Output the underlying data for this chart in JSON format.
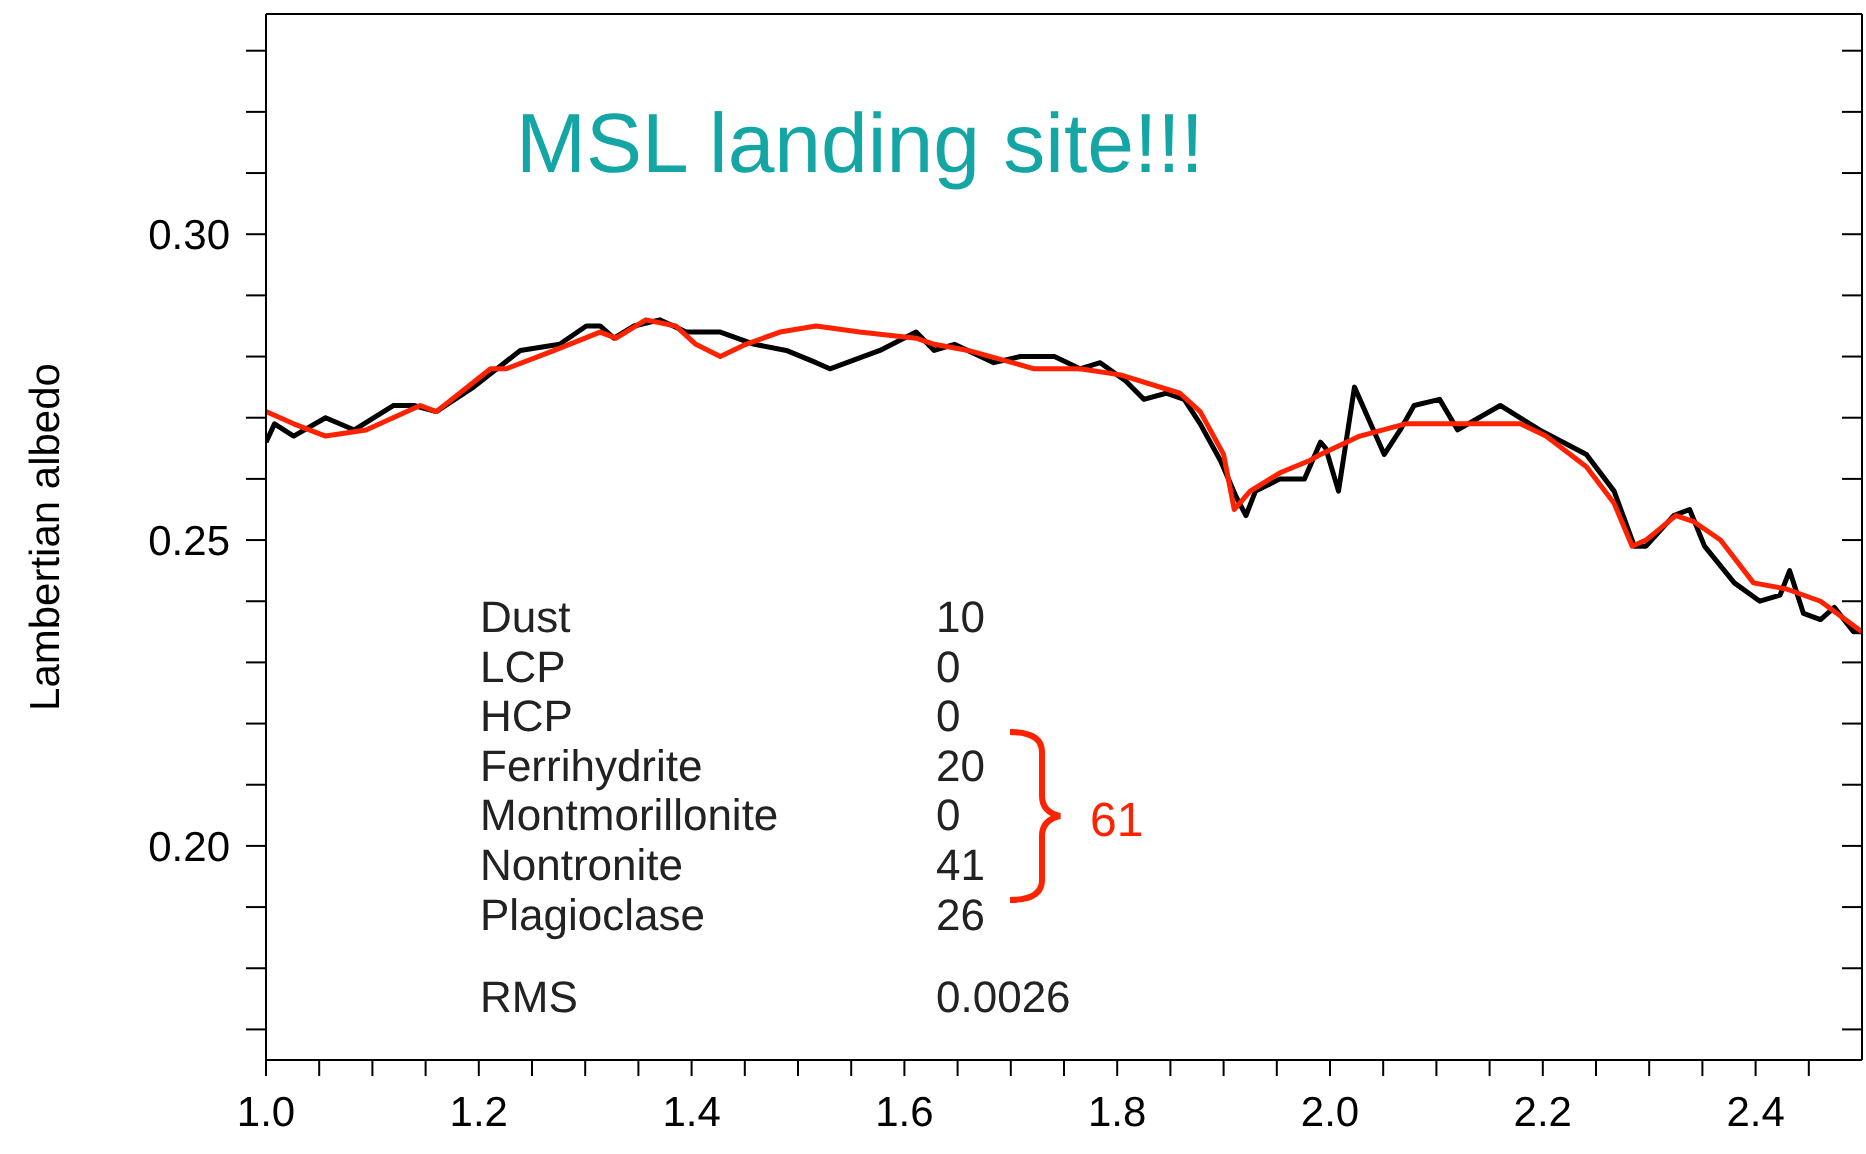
{
  "chart_data": {
    "type": "line",
    "title": "MSL landing site!!!",
    "ylabel": "Lambertian albedo",
    "xlim": [
      1.0,
      2.5
    ],
    "xticks": [
      {
        "value": 1.0,
        "label": "1.0"
      },
      {
        "value": 1.05,
        "label": null
      },
      {
        "value": 1.1,
        "label": null
      },
      {
        "value": 1.15,
        "label": null
      },
      1.2,
      {
        "value": 1.25,
        "label": null
      },
      {
        "value": 1.3,
        "label": null
      },
      {
        "value": 1.35,
        "label": null
      },
      1.4,
      {
        "value": 1.45,
        "label": null
      },
      {
        "value": 1.5,
        "label": null
      },
      {
        "value": 1.55,
        "label": null
      },
      1.6,
      {
        "value": 1.65,
        "label": null
      },
      {
        "value": 1.7,
        "label": null
      },
      {
        "value": 1.75,
        "label": null
      },
      1.8,
      {
        "value": 1.85,
        "label": null
      },
      {
        "value": 1.9,
        "label": null
      },
      {
        "value": 1.95,
        "label": null
      },
      {
        "value": 2.0,
        "label": "2.0"
      },
      {
        "value": 2.05,
        "label": null
      },
      {
        "value": 2.1,
        "label": null
      },
      {
        "value": 2.15,
        "label": null
      },
      2.2,
      {
        "value": 2.25,
        "label": null
      },
      {
        "value": 2.3,
        "label": null
      },
      {
        "value": 2.35,
        "label": null
      },
      2.4,
      {
        "value": 2.45,
        "label": null
      }
    ],
    "ylim": [
      0.165,
      0.336
    ],
    "yticks": [
      {
        "value": 0.17,
        "label": null
      },
      {
        "value": 0.18,
        "label": null
      },
      {
        "value": 0.19,
        "label": null
      },
      {
        "value": 0.2,
        "label": "0.20"
      },
      {
        "value": 0.21,
        "label": null
      },
      {
        "value": 0.22,
        "label": null
      },
      {
        "value": 0.23,
        "label": null
      },
      {
        "value": 0.24,
        "label": null
      },
      {
        "value": 0.25,
        "label": "0.25"
      },
      {
        "value": 0.26,
        "label": null
      },
      {
        "value": 0.27,
        "label": null
      },
      {
        "value": 0.28,
        "label": null
      },
      {
        "value": 0.29,
        "label": null
      },
      {
        "value": 0.3,
        "label": "0.30"
      },
      {
        "value": 0.31,
        "label": null
      },
      {
        "value": 0.32,
        "label": null
      },
      {
        "value": 0.33,
        "label": null
      }
    ],
    "marker": "none",
    "line_style": "solid",
    "series": [
      {
        "color": "#000000",
        "x": [
          1.0,
          1.008,
          1.026,
          1.056,
          1.083,
          1.12,
          1.139,
          1.16,
          1.195,
          1.239,
          1.276,
          1.301,
          1.314,
          1.327,
          1.346,
          1.37,
          1.395,
          1.427,
          1.459,
          1.489,
          1.517,
          1.53,
          1.577,
          1.611,
          1.628,
          1.647,
          1.684,
          1.709,
          1.741,
          1.765,
          1.784,
          1.808,
          1.825,
          1.846,
          1.863,
          1.878,
          1.897,
          1.912,
          1.921,
          1.93,
          1.953,
          1.976,
          1.991,
          1.996,
          2.008,
          2.023,
          2.051,
          2.066,
          2.079,
          2.103,
          2.12,
          2.16,
          2.197,
          2.241,
          2.267,
          2.286,
          2.297,
          2.323,
          2.338,
          2.352,
          2.38,
          2.404,
          2.423,
          2.432,
          2.445,
          2.461,
          2.474,
          2.492,
          2.5
        ],
        "values": [
          0.266,
          0.269,
          0.267,
          0.27,
          0.268,
          0.272,
          0.272,
          0.271,
          0.275,
          0.281,
          0.282,
          0.285,
          0.285,
          0.283,
          0.285,
          0.286,
          0.284,
          0.284,
          0.282,
          0.281,
          0.279,
          0.278,
          0.281,
          0.284,
          0.281,
          0.282,
          0.279,
          0.28,
          0.28,
          0.278,
          0.279,
          0.276,
          0.273,
          0.274,
          0.273,
          0.269,
          0.263,
          0.257,
          0.254,
          0.258,
          0.26,
          0.26,
          0.266,
          0.265,
          0.258,
          0.275,
          0.264,
          0.268,
          0.272,
          0.273,
          0.268,
          0.272,
          0.268,
          0.264,
          0.258,
          0.249,
          0.249,
          0.254,
          0.255,
          0.249,
          0.243,
          0.24,
          0.241,
          0.245,
          0.238,
          0.237,
          0.239,
          0.235,
          0.235
        ]
      },
      {
        "color": "#ff2200",
        "x": [
          1.0,
          1.026,
          1.056,
          1.094,
          1.145,
          1.16,
          1.182,
          1.211,
          1.226,
          1.271,
          1.314,
          1.329,
          1.357,
          1.385,
          1.404,
          1.427,
          1.451,
          1.483,
          1.517,
          1.558,
          1.611,
          1.628,
          1.66,
          1.722,
          1.765,
          1.803,
          1.859,
          1.878,
          1.9,
          1.91,
          1.925,
          1.953,
          1.981,
          1.991,
          2.028,
          2.071,
          2.179,
          2.203,
          2.241,
          2.267,
          2.284,
          2.297,
          2.325,
          2.342,
          2.367,
          2.398,
          2.429,
          2.461,
          2.5
        ],
        "values": [
          0.271,
          0.269,
          0.267,
          0.268,
          0.272,
          0.271,
          0.274,
          0.278,
          0.278,
          0.281,
          0.284,
          0.283,
          0.286,
          0.285,
          0.282,
          0.28,
          0.282,
          0.284,
          0.285,
          0.284,
          0.283,
          0.282,
          0.281,
          0.278,
          0.278,
          0.277,
          0.274,
          0.271,
          0.264,
          0.255,
          0.258,
          0.261,
          0.263,
          0.264,
          0.267,
          0.269,
          0.269,
          0.267,
          0.262,
          0.256,
          0.249,
          0.25,
          0.254,
          0.253,
          0.25,
          0.243,
          0.242,
          0.24,
          0.235
        ]
      }
    ],
    "annotations": [
      "Dust",
      "10",
      "LCP",
      "0",
      "HCP",
      "0",
      "Ferrihydrite",
      "20",
      "Montmorillonite",
      "0",
      "Nontronite",
      "41",
      "Plagioclase",
      "26",
      "RMS",
      "0.0026",
      "61"
    ]
  }
}
